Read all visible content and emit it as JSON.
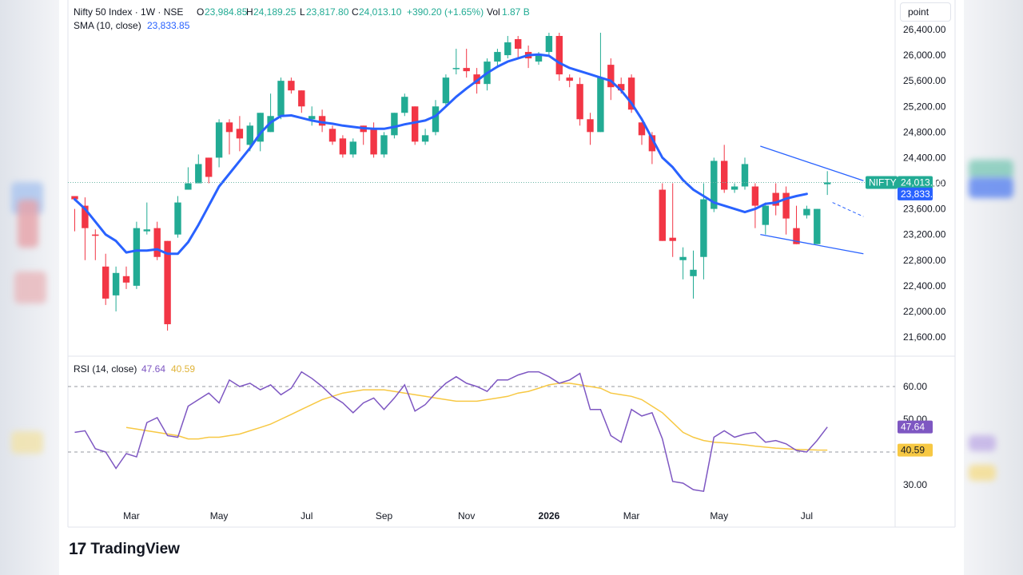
{
  "header": {
    "symbol": "Nifty 50 Index · 1W · NSE",
    "o_label": "O",
    "o_value": "23,984.85",
    "h_label": "H",
    "h_value": "24,189.25",
    "l_label": "L",
    "l_value": "23,817.80",
    "c_label": "C",
    "c_value": "24,013.10",
    "change": "+390.20 (+1.65%)",
    "vol_label": "Vol",
    "vol_value": "1.87 B",
    "sma_label": "SMA (10, close)",
    "sma_value": "23,833.85",
    "rsi_label": "RSI (14, close)",
    "rsi_value": "47.64",
    "rsi_ma_value": "40.59"
  },
  "unit_button": "point",
  "badges": {
    "symbol": "NIFTY",
    "price": "24,013.10",
    "sma": "23,833.85",
    "rsi": "47.64",
    "rsi_ma": "40.59"
  },
  "logo": {
    "text": "TradingView",
    "mark": "17"
  },
  "colors": {
    "up": "#22ab94",
    "down": "#f23645",
    "sma": "#2962ff",
    "rsi": "#7e57c2",
    "rsi_ma": "#f7c843",
    "channel": "#2962ff",
    "dotted": "#6fb8a8"
  },
  "chart_data": [
    {
      "type": "candlestick",
      "title": "Nifty 50 Index · 1W · NSE",
      "y_ticks": [
        "21,600.00",
        "22,000.00",
        "22,400.00",
        "22,800.00",
        "23,200.00",
        "23,600.00",
        "24,000.00",
        "24,400.00",
        "24,800.00",
        "25,200.00",
        "25,600.00",
        "26,000.00",
        "26,400.00"
      ],
      "y_tick_values": [
        21600,
        22000,
        22400,
        22800,
        23200,
        23600,
        24000,
        24400,
        24800,
        25200,
        25600,
        26000,
        26400
      ],
      "ylim": [
        21380,
        26620
      ],
      "x_ticks": [
        "Mar",
        "May",
        "Jul",
        "Sep",
        "Nov",
        "2026",
        "Mar",
        "May",
        "Jul"
      ],
      "x_tick_index": [
        5.5,
        14,
        22.5,
        30,
        38,
        46,
        54,
        62.5,
        71
      ],
      "bars": [
        [
          23800,
          23750,
          23250,
          23600
        ],
        [
          23650,
          23300,
          22800,
          23780
        ],
        [
          23200,
          23180,
          22800,
          23280
        ],
        [
          22700,
          22200,
          22100,
          22900
        ],
        [
          22250,
          22600,
          22000,
          22700
        ],
        [
          22550,
          22450,
          22350,
          22700
        ],
        [
          22400,
          23300,
          22350,
          23400
        ],
        [
          23250,
          23280,
          23200,
          23700
        ],
        [
          23300,
          22850,
          22800,
          23400
        ],
        [
          23100,
          21800,
          21700,
          23100
        ],
        [
          23200,
          23700,
          23150,
          23800
        ],
        [
          23900,
          24000,
          23900,
          24250
        ],
        [
          24000,
          24300,
          24000,
          24450
        ],
        [
          24400,
          24100,
          24000,
          24400
        ],
        [
          24400,
          24950,
          24250,
          25000
        ],
        [
          24950,
          24800,
          24450,
          25000
        ],
        [
          24850,
          24700,
          24500,
          25050
        ],
        [
          24600,
          24900,
          24500,
          24950
        ],
        [
          24650,
          25100,
          24500,
          25100
        ],
        [
          24800,
          25050,
          24800,
          25400
        ],
        [
          25050,
          25600,
          25000,
          25650
        ],
        [
          25600,
          25450,
          25400,
          25650
        ],
        [
          25450,
          25200,
          25100,
          25450
        ],
        [
          25000,
          25050,
          24900,
          25200
        ],
        [
          25050,
          24900,
          24800,
          25150
        ],
        [
          24850,
          24650,
          24600,
          24900
        ],
        [
          24700,
          24450,
          24400,
          24750
        ],
        [
          24450,
          24650,
          24400,
          24700
        ],
        [
          24900,
          24800,
          24600,
          24900
        ],
        [
          24850,
          24450,
          24400,
          24950
        ],
        [
          24450,
          24750,
          24400,
          24800
        ],
        [
          24750,
          25100,
          24700,
          25100
        ],
        [
          25100,
          25350,
          25050,
          25400
        ],
        [
          25200,
          24650,
          24600,
          25200
        ],
        [
          24650,
          24750,
          24600,
          24850
        ],
        [
          24800,
          25200,
          24750,
          25300
        ],
        [
          25250,
          25650,
          25200,
          25700
        ],
        [
          25800,
          25800,
          25700,
          26100
        ],
        [
          25800,
          25750,
          25650,
          26100
        ],
        [
          25700,
          25550,
          25400,
          25800
        ],
        [
          25550,
          25900,
          25450,
          25950
        ],
        [
          25900,
          26050,
          25800,
          26100
        ],
        [
          26000,
          26200,
          25950,
          26300
        ],
        [
          26250,
          26100,
          25950,
          26300
        ],
        [
          26050,
          25950,
          25800,
          26150
        ],
        [
          25900,
          26000,
          25850,
          26050
        ],
        [
          26050,
          26300,
          26000,
          26350
        ],
        [
          26300,
          25700,
          25600,
          26350
        ],
        [
          25650,
          25600,
          25500,
          25700
        ],
        [
          25550,
          25000,
          24900,
          25650
        ],
        [
          25000,
          24800,
          24600,
          25100
        ],
        [
          24800,
          25650,
          24800,
          26350
        ],
        [
          25850,
          25500,
          25300,
          25950
        ],
        [
          25550,
          25450,
          25400,
          25650
        ],
        [
          25650,
          25150,
          25100,
          25700
        ],
        [
          24950,
          24750,
          24600,
          24950
        ],
        [
          24750,
          24500,
          24300,
          24800
        ],
        [
          23900,
          23100,
          23100,
          24000
        ],
        [
          23150,
          23100,
          22850,
          24000
        ],
        [
          22800,
          22850,
          22500,
          23000
        ],
        [
          22550,
          22650,
          22200,
          22950
        ],
        [
          22850,
          23750,
          22500,
          24000
        ],
        [
          23600,
          24350,
          23550,
          24400
        ],
        [
          24350,
          23900,
          23850,
          24600
        ],
        [
          23900,
          23950,
          23850,
          24000
        ],
        [
          23950,
          24300,
          23900,
          24400
        ],
        [
          23950,
          23650,
          23300,
          24000
        ],
        [
          23350,
          23650,
          23200,
          23700
        ],
        [
          23850,
          23650,
          23500,
          24000
        ],
        [
          23850,
          23450,
          23200,
          23950
        ],
        [
          23300,
          23050,
          23050,
          23650
        ],
        [
          23500,
          23600,
          23450,
          23650
        ],
        [
          23050,
          23600,
          23050,
          23600
        ],
        [
          23984.85,
          24013.1,
          23817.8,
          24189.25
        ]
      ],
      "sma_name": "SMA (10, close)",
      "sma_last": 23833.85,
      "sma": [
        23750,
        23600,
        23400,
        23200,
        23100,
        22920,
        22950,
        22950,
        22970,
        22900,
        22900,
        23080,
        23350,
        23650,
        23950,
        24150,
        24350,
        24550,
        24780,
        24950,
        25050,
        25060,
        25020,
        24980,
        24950,
        24930,
        24900,
        24880,
        24860,
        24850,
        24850,
        24880,
        24920,
        24950,
        24980,
        25050,
        25200,
        25350,
        25480,
        25600,
        25720,
        25820,
        25900,
        25950,
        26000,
        26010,
        25990,
        25880,
        25800,
        25750,
        25700,
        25650,
        25600,
        25450,
        25250,
        25000,
        24700,
        24400,
        24250,
        24050,
        23900,
        23800,
        23700,
        23650,
        23600,
        23550,
        23600,
        23680,
        23700,
        23760,
        23800,
        23833.85
      ],
      "channel": {
        "upper": [
          [
            66.5,
            24580
          ],
          [
            76.5,
            24040
          ]
        ],
        "lower": [
          [
            66.5,
            23200
          ],
          [
            76.5,
            22900
          ]
        ]
      }
    },
    {
      "type": "line",
      "title": "RSI (14, close)",
      "y_ticks": [
        "30.00",
        "40.00",
        "50.00",
        "60.00"
      ],
      "y_tick_values": [
        30,
        40,
        50,
        60
      ],
      "dashed_levels": [
        40,
        60
      ],
      "ylim": [
        25.5,
        68.5
      ],
      "series": [
        {
          "name": "RSI (14, close)",
          "last": 47.64,
          "values": [
            46,
            46.5,
            41,
            40,
            35,
            39.5,
            38.5,
            49,
            50.5,
            45,
            44.5,
            54,
            56,
            58,
            55,
            62,
            60,
            61,
            59,
            60.5,
            57.5,
            59.5,
            64.5,
            62.5,
            60,
            57,
            55,
            52,
            55,
            56.5,
            53,
            56.5,
            60.5,
            52.5,
            54.5,
            58,
            61,
            63,
            61,
            60,
            58.5,
            62,
            62,
            63.5,
            64.5,
            64.5,
            63,
            61,
            62,
            64,
            53,
            53,
            45,
            43,
            53,
            51,
            52,
            44,
            31,
            30.5,
            28.5,
            28,
            44.5,
            46.5,
            44.5,
            45.5,
            46,
            43,
            43.5,
            42.5,
            40.5,
            40,
            43.5,
            47.64
          ]
        },
        {
          "name": "RSI MA",
          "last": 40.59,
          "values": [
            47.5,
            47,
            46.5,
            46,
            45.5,
            45,
            44,
            44,
            44.5,
            44.5,
            45,
            45.5,
            46.5,
            47.5,
            48.5,
            50,
            51.5,
            53,
            54.5,
            56,
            57,
            58,
            58.5,
            59,
            59,
            59,
            58.5,
            58,
            57.5,
            57,
            56.5,
            56,
            55.5,
            55.5,
            55.5,
            56,
            56.5,
            57,
            58,
            58.5,
            59.5,
            60.5,
            61,
            61,
            60.5,
            60,
            59.5,
            58,
            57.5,
            57,
            56,
            54,
            52,
            49,
            46,
            44.5,
            43.5,
            43,
            42.8,
            42.5,
            42.2,
            41.8,
            41.5,
            41.2,
            41,
            40.8,
            40.7,
            40.6,
            40.59
          ]
        }
      ]
    }
  ]
}
